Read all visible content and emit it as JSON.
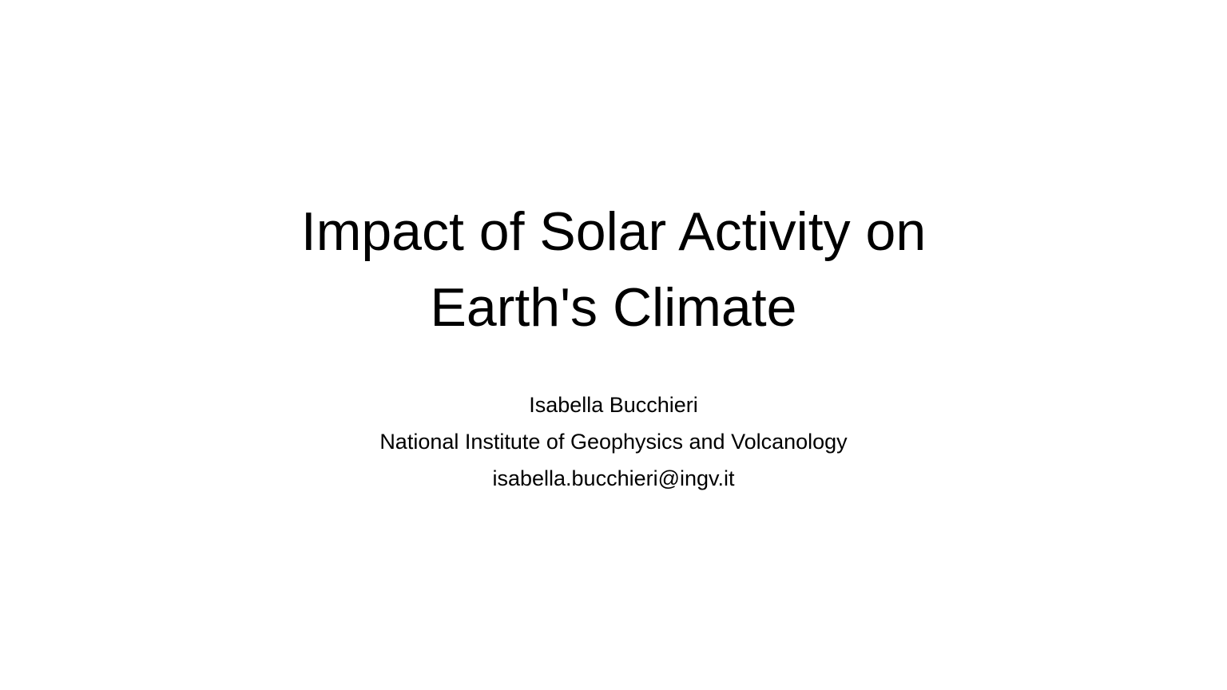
{
  "slide": {
    "title_line1": "Impact of Solar Activity on",
    "title_line2": "Earth's Climate",
    "author": "Isabella Bucchieri",
    "affiliation": "National Institute of Geophysics and Volcanology",
    "email": "isabella.bucchieri@ingv.it"
  }
}
